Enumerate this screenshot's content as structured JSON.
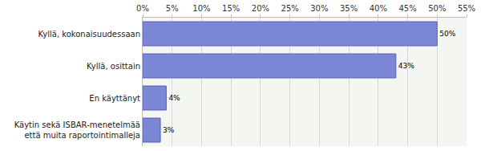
{
  "chart_data": {
    "type": "bar",
    "orientation": "horizontal",
    "categories": [
      "Kyllä, kokonaisuudessaan",
      "Kyllä, osittain",
      "En käyttänyt",
      "Käytin sekä ISBAR-menetelmää että muita raportointimalleja"
    ],
    "values": [
      50,
      43,
      4,
      3
    ],
    "value_labels": [
      "50%",
      "43%",
      "4%",
      "3%"
    ],
    "data_labels": true,
    "color": "#7b86d4",
    "xlim": [
      0,
      55
    ],
    "xticks": [
      {
        "value": 0,
        "label": "0%"
      },
      {
        "value": 5,
        "label": "5%"
      },
      {
        "value": 10,
        "label": "10%"
      },
      {
        "value": 15,
        "label": "15%"
      },
      {
        "value": 20,
        "label": "20%"
      },
      {
        "value": 25,
        "label": "25%"
      },
      {
        "value": 30,
        "label": "30%"
      },
      {
        "value": 35,
        "label": "35%"
      },
      {
        "value": 40,
        "label": "40%"
      },
      {
        "value": 45,
        "label": "45%"
      },
      {
        "value": 50,
        "label": "50%"
      },
      {
        "value": 55,
        "label": "55%"
      }
    ],
    "grid": true
  }
}
